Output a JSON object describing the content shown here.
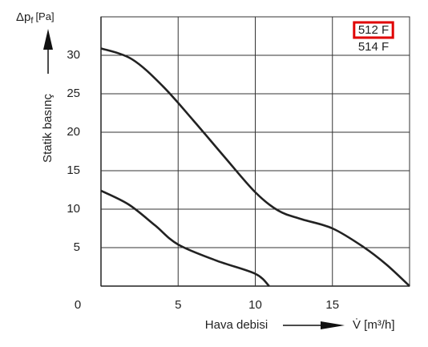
{
  "chart_data": {
    "type": "line",
    "y_label": "Statik basınç",
    "y_unit_symbol": "Δp",
    "y_unit_subscript": "f",
    "y_unit": "[Pa]",
    "x_label": "Hava debisi",
    "x_unit": "V̇ [m³/h]",
    "xlim": [
      0,
      20
    ],
    "xticks": [
      0,
      5,
      10,
      15
    ],
    "ylim": [
      0,
      35
    ],
    "yticks": [
      5,
      10,
      15,
      20,
      25,
      30
    ],
    "grid": true,
    "series": [
      {
        "name": "512 F",
        "color": "#222222",
        "x": [
          0,
          2,
          4,
          6,
          8,
          10,
          11.5,
          13,
          15,
          17,
          18.5,
          20
        ],
        "values": [
          30.9,
          29.5,
          26,
          21.5,
          16.8,
          12.2,
          9.8,
          8.7,
          7.5,
          5.1,
          2.8,
          0
        ]
      },
      {
        "name": "514 F",
        "color": "#222222",
        "x": [
          0,
          1.8,
          3.5,
          5,
          7.5,
          10,
          10.9
        ],
        "values": [
          12.4,
          10.6,
          7.9,
          5.4,
          3.3,
          1.6,
          0
        ]
      }
    ]
  }
}
